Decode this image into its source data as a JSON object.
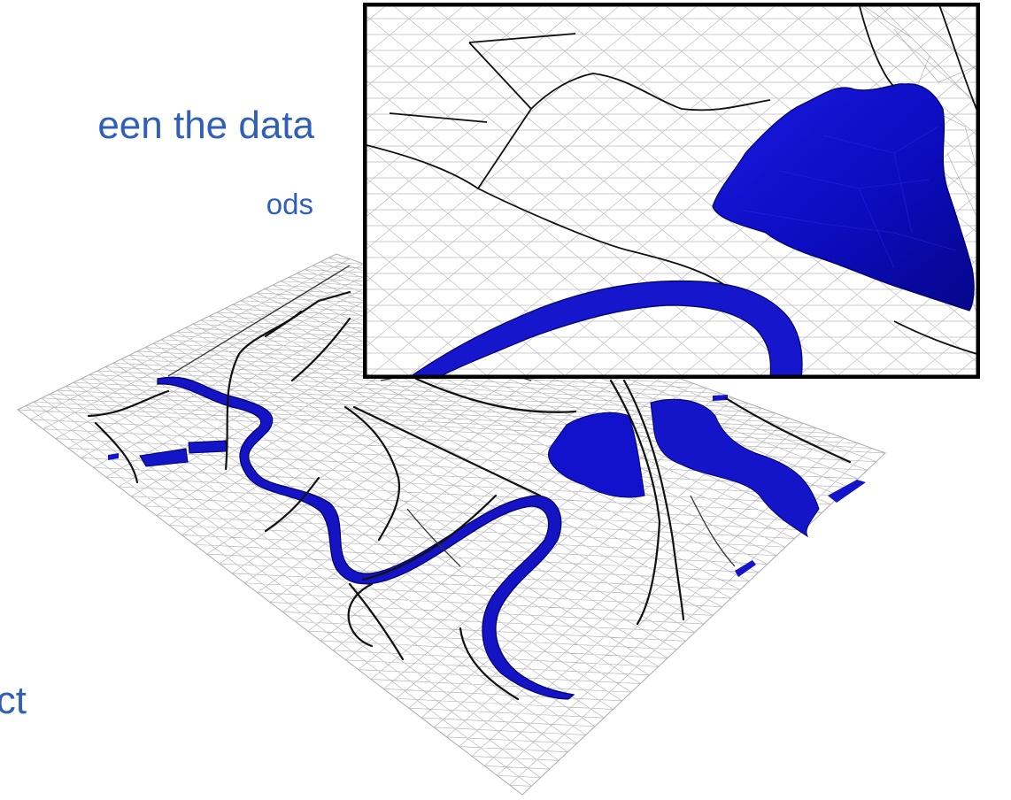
{
  "text": {
    "line1": "een the data",
    "line2": "ods",
    "line3": "ct"
  },
  "colors": {
    "text_blue": "#2f5fb8",
    "water_blue": "#1010c8",
    "water_dark": "#00007a",
    "mesh_gray": "#b5b5b5",
    "road_black": "#111111",
    "inset_border": "#000000"
  }
}
